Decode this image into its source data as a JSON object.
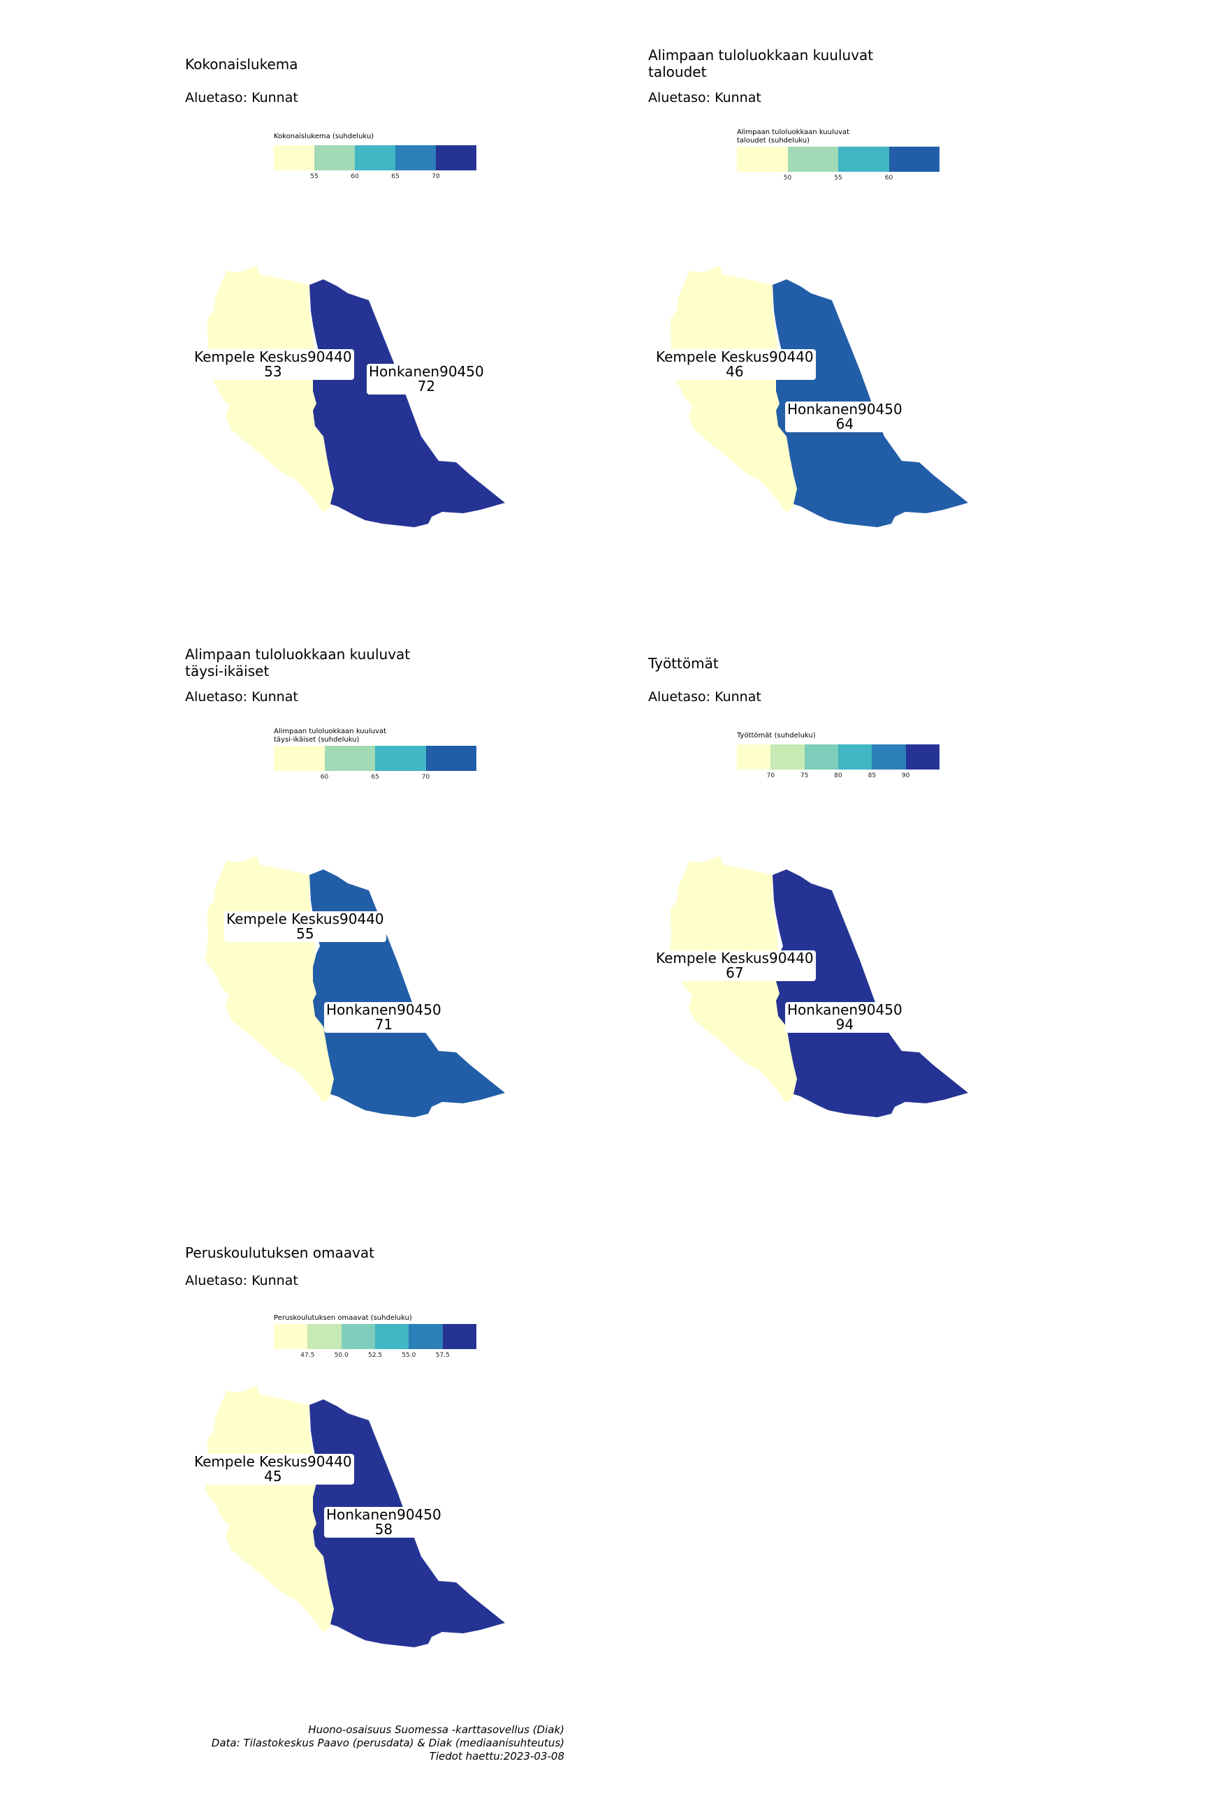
{
  "palettes": {
    "p5": [
      "#ffffcc",
      "#a1dab4",
      "#41b6c4",
      "#2c7fb8",
      "#253494"
    ],
    "p4": [
      "#ffffcc",
      "#a1dab4",
      "#41b6c4",
      "#225ea8"
    ],
    "p6": [
      "#ffffcc",
      "#c7e9b4",
      "#7fcdbb",
      "#41b6c4",
      "#2c7fb8",
      "#253494"
    ]
  },
  "panels": [
    {
      "title": "Kokonaislukema",
      "subtitle": "Aluetaso: Kunnat",
      "legend_title": "Kokonaislukema (suhdeluku)",
      "legend_colors": [
        "#ffffcc",
        "#a1dab4",
        "#41b6c4",
        "#2c7fb8",
        "#253494"
      ],
      "legend_ticks": [
        "55",
        "60",
        "65",
        "70"
      ],
      "kempele_color": "#ffffcc",
      "honkanen_color": "#253494",
      "kempele_label": "Kempele Keskus90440",
      "kempele_value": "53",
      "honkanen_label": "Honkanen90450",
      "honkanen_value": "72"
    },
    {
      "title": "Alimpaan tuloluokkaan kuuluvat\ntaloudet",
      "subtitle": "Aluetaso: Kunnat",
      "legend_title": "Alimpaan tuloluokkaan kuuluvat\ntaloudet (suhdeluku)",
      "legend_colors": [
        "#ffffcc",
        "#a1dab4",
        "#41b6c4",
        "#225ea8"
      ],
      "legend_ticks": [
        "50",
        "55",
        "60"
      ],
      "kempele_color": "#ffffcc",
      "honkanen_color": "#225ea8",
      "kempele_label": "Kempele Keskus90440",
      "kempele_value": "46",
      "honkanen_label": "Honkanen90450",
      "honkanen_value": "64"
    },
    {
      "title": "Alimpaan tuloluokkaan kuuluvat\ntäysi-ikäiset",
      "subtitle": "Aluetaso: Kunnat",
      "legend_title": "Alimpaan tuloluokkaan kuuluvat\ntäysi-ikäiset (suhdeluku)",
      "legend_colors": [
        "#ffffcc",
        "#a1dab4",
        "#41b6c4",
        "#225ea8"
      ],
      "legend_ticks": [
        "60",
        "65",
        "70"
      ],
      "kempele_color": "#ffffcc",
      "honkanen_color": "#225ea8",
      "kempele_label": "Kempele Keskus90440",
      "kempele_value": "55",
      "honkanen_label": "Honkanen90450",
      "honkanen_value": "71"
    },
    {
      "title": "Työttömät",
      "subtitle": "Aluetaso: Kunnat",
      "legend_title": "Työttömät (suhdeluku)",
      "legend_colors": [
        "#ffffcc",
        "#c7e9b4",
        "#7fcdbb",
        "#41b6c4",
        "#2c7fb8",
        "#253494"
      ],
      "legend_ticks": [
        "70",
        "75",
        "80",
        "85",
        "90"
      ],
      "kempele_color": "#ffffcc",
      "honkanen_color": "#253494",
      "kempele_label": "Kempele Keskus90440",
      "kempele_value": "67",
      "honkanen_label": "Honkanen90450",
      "honkanen_value": "94"
    },
    {
      "title": "Peruskoulutuksen omaavat",
      "subtitle": "Aluetaso: Kunnat",
      "legend_title": "Peruskoulutuksen omaavat (suhdeluku)",
      "legend_colors": [
        "#ffffcc",
        "#c7e9b4",
        "#7fcdbb",
        "#41b6c4",
        "#2c7fb8",
        "#253494"
      ],
      "legend_ticks": [
        "47.5",
        "50.0",
        "52.5",
        "55.0",
        "57.5"
      ],
      "kempele_color": "#ffffcc",
      "honkanen_color": "#253494",
      "kempele_label": "Kempele Keskus90440",
      "kempele_value": "45",
      "honkanen_label": "Honkanen90450",
      "honkanen_value": "58"
    }
  ],
  "caption": {
    "line1": "Huono-osaisuus Suomessa -karttasovellus (Diak)",
    "line2": "Data: Tilastokeskus Paavo (perusdata) & Diak (mediaanisuhteutus)",
    "line3": "Tiedot haettu:2023-03-08"
  }
}
